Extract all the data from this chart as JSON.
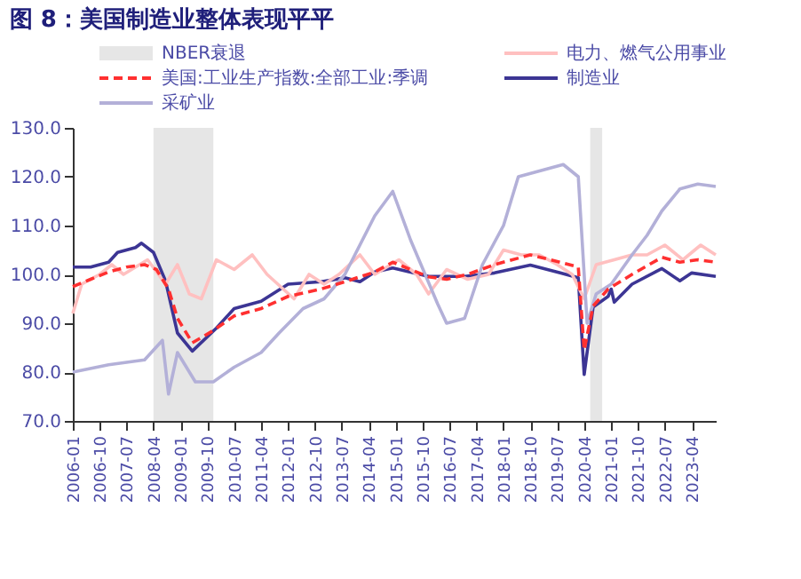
{
  "chart_data": {
    "type": "line",
    "title": "图 8：美国制造业整体表现平平",
    "xlim": [
      "2006-01",
      "2023-12"
    ],
    "xticks": [
      "2006-01",
      "2006-10",
      "2007-07",
      "2008-04",
      "2009-01",
      "2009-10",
      "2010-07",
      "2011-04",
      "2012-01",
      "2012-10",
      "2013-07",
      "2014-04",
      "2015-01",
      "2015-10",
      "2016-07",
      "2017-04",
      "2018-01",
      "2018-10",
      "2019-07",
      "2020-04",
      "2021-01",
      "2021-10",
      "2022-07",
      "2023-04"
    ],
    "ylim": [
      70,
      130
    ],
    "yticks": [
      {
        "value": 70,
        "label": "70.0"
      },
      {
        "value": 80,
        "label": "80.0"
      },
      {
        "value": 90,
        "label": "90.0"
      },
      {
        "value": 100,
        "label": "100.0"
      },
      {
        "value": 110,
        "label": "110.0"
      },
      {
        "value": 120,
        "label": "120.0"
      },
      {
        "value": 130,
        "label": "130.0"
      }
    ],
    "grid": false,
    "legend": "top",
    "marker": "none",
    "bands": [
      {
        "axis": "x",
        "from": "2008-04",
        "to": "2009-12",
        "label": "NBER衰退",
        "color": "#e6e6e6"
      },
      {
        "axis": "x",
        "from": "2020-06",
        "to": "2020-10",
        "color": "#e6e6e6"
      }
    ],
    "series": [
      {
        "name": "美国:工业生产指数:全部工业:季调",
        "color": "#ff3030",
        "line_style": "dashed",
        "x": [
          "2006-01",
          "2006-07",
          "2007-01",
          "2007-07",
          "2008-01",
          "2008-05",
          "2008-09",
          "2008-12",
          "2009-05",
          "2009-12",
          "2010-07",
          "2011-04",
          "2012-01",
          "2012-12",
          "2013-08",
          "2014-06",
          "2014-12",
          "2015-12",
          "2016-06",
          "2017-01",
          "2017-10",
          "2018-10",
          "2019-08",
          "2020-02",
          "2020-04",
          "2020-07",
          "2020-12",
          "2021-08",
          "2022-06",
          "2022-12",
          "2023-06",
          "2023-12"
        ],
        "values": [
          97.5,
          99,
          100.5,
          101.5,
          102,
          101,
          97,
          91,
          86,
          88.5,
          91.5,
          93,
          95.5,
          97,
          98.5,
          100.5,
          102.5,
          99.5,
          99,
          100,
          102,
          104,
          102.5,
          101.5,
          84.5,
          93.5,
          97,
          100,
          103.5,
          102.5,
          103,
          102.5
        ]
      },
      {
        "name": "采矿业",
        "color": "#b3b0d8",
        "line_style": "solid",
        "x": [
          "2006-01",
          "2007-01",
          "2008-01",
          "2008-07",
          "2008-09",
          "2008-12",
          "2009-06",
          "2009-12",
          "2010-07",
          "2011-04",
          "2011-10",
          "2012-06",
          "2013-01",
          "2013-08",
          "2014-06",
          "2014-12",
          "2015-06",
          "2016-03",
          "2016-06",
          "2016-12",
          "2017-06",
          "2018-01",
          "2018-06",
          "2019-09",
          "2020-02",
          "2020-05",
          "2020-08",
          "2021-01",
          "2021-08",
          "2022-01",
          "2022-06",
          "2022-12",
          "2023-06",
          "2023-12"
        ],
        "values": [
          80,
          81.5,
          82.5,
          86.5,
          75.5,
          84,
          78,
          78,
          81,
          84,
          88,
          93,
          95,
          100,
          112,
          117,
          107,
          94,
          90,
          91,
          102,
          110,
          120,
          122.5,
          120,
          90,
          96,
          98,
          104,
          108,
          113,
          117.5,
          118.5,
          118
        ]
      },
      {
        "name": "电力、燃气公用事业",
        "color": "#ffc0c0",
        "line_style": "solid",
        "x": [
          "2006-01",
          "2006-04",
          "2006-10",
          "2007-02",
          "2007-06",
          "2008-02",
          "2008-08",
          "2008-12",
          "2009-04",
          "2009-08",
          "2010-01",
          "2010-07",
          "2011-01",
          "2011-06",
          "2012-03",
          "2012-08",
          "2013-01",
          "2013-06",
          "2014-01",
          "2014-06",
          "2015-02",
          "2015-08",
          "2015-12",
          "2016-06",
          "2017-01",
          "2017-08",
          "2018-01",
          "2018-07",
          "2019-01",
          "2019-07",
          "2019-12",
          "2020-04",
          "2020-08",
          "2021-02",
          "2021-08",
          "2022-01",
          "2022-07",
          "2023-01",
          "2023-07",
          "2023-12"
        ],
        "values": [
          92,
          98,
          100,
          102,
          100,
          103,
          98,
          102,
          96,
          95,
          103,
          101,
          104,
          100,
          95,
          100,
          98,
          100,
          104,
          100,
          103,
          100,
          96,
          101,
          99,
          100,
          105,
          104,
          104,
          102,
          100,
          95,
          102,
          103,
          104,
          104,
          106,
          103,
          106,
          104
        ]
      },
      {
        "name": "制造业",
        "color": "#3c3594",
        "line_style": "solid",
        "x": [
          "2006-01",
          "2006-07",
          "2007-01",
          "2007-04",
          "2007-10",
          "2007-12",
          "2008-04",
          "2008-08",
          "2008-12",
          "2009-05",
          "2010-01",
          "2010-07",
          "2011-04",
          "2012-01",
          "2012-12",
          "2013-08",
          "2014-01",
          "2014-06",
          "2014-12",
          "2015-12",
          "2016-12",
          "2017-10",
          "2018-10",
          "2019-08",
          "2020-02",
          "2020-04",
          "2020-07",
          "2020-12",
          "2021-01",
          "2021-02",
          "2021-08",
          "2022-06",
          "2022-12",
          "2023-04",
          "2023-12"
        ],
        "values": [
          101.5,
          101.5,
          102.5,
          104.5,
          105.5,
          106.4,
          104.5,
          98.7,
          88,
          84.3,
          89,
          93,
          94.5,
          98,
          98.5,
          99.3,
          98.5,
          100.5,
          101.3,
          99.6,
          99.6,
          100.3,
          101.9,
          100.3,
          99.3,
          79.5,
          93.3,
          95.5,
          97,
          94.3,
          98,
          101.2,
          98.7,
          100.3,
          99.6
        ]
      }
    ]
  }
}
